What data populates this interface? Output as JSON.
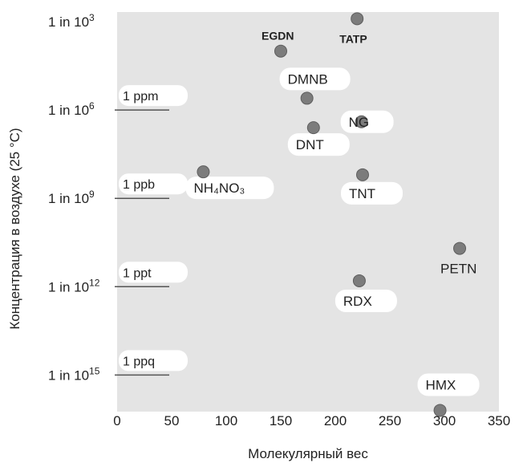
{
  "chart_data": {
    "type": "scatter",
    "title": "",
    "xlabel": "Молекулярный вес",
    "ylabel": "Концентрация в воздухе (25 °C)",
    "xlim": [
      0,
      350
    ],
    "x_ticks": [
      "0",
      "50",
      "100",
      "150",
      "200",
      "250",
      "300",
      "350"
    ],
    "ylim_log10_inverse": [
      2,
      17.5
    ],
    "y_ticks": [
      {
        "prefix": "1 in 10",
        "exp": "3",
        "log10": 3
      },
      {
        "prefix": "1 in 10",
        "exp": "6",
        "log10": 6
      },
      {
        "prefix": "1 in 10",
        "exp": "9",
        "log10": 9
      },
      {
        "prefix": "1 in 10",
        "exp": "12",
        "log10": 12
      },
      {
        "prefix": "1 in 10",
        "exp": "15",
        "log10": 15
      }
    ],
    "concentration_marks": [
      {
        "label": "1 ppm",
        "log10": 6
      },
      {
        "label": "1 ppb",
        "log10": 9
      },
      {
        "label": "1 ppt",
        "log10": 12
      },
      {
        "label": "1 ppq",
        "log10": 15
      }
    ],
    "points": [
      {
        "name": "EGDN",
        "x": 150,
        "y": 4.0,
        "label_style": "bold"
      },
      {
        "name": "TATP",
        "x": 220,
        "y": 2.9,
        "label_style": "bold"
      },
      {
        "name": "DMNB",
        "x": 174,
        "y": 5.6,
        "label_style": "normal"
      },
      {
        "name": "NG",
        "x": 224,
        "y": 6.4,
        "label_style": "normal"
      },
      {
        "name": "DNT",
        "x": 180,
        "y": 6.6,
        "label_style": "normal"
      },
      {
        "name": "NH₄NO₃",
        "x": 79,
        "y": 8.1,
        "label_style": "normal"
      },
      {
        "name": "TNT",
        "x": 225,
        "y": 8.2,
        "label_style": "normal"
      },
      {
        "name": "PETN",
        "x": 314,
        "y": 10.7,
        "label_style": "normal"
      },
      {
        "name": "RDX",
        "x": 222,
        "y": 11.8,
        "label_style": "normal"
      },
      {
        "name": "HMX",
        "x": 296,
        "y": 16.2,
        "label_style": "normal"
      }
    ],
    "colors": {
      "point": "#7c7c7c",
      "plot_bg": "#e4e4e4",
      "label_bg": "#ffffff"
    }
  }
}
